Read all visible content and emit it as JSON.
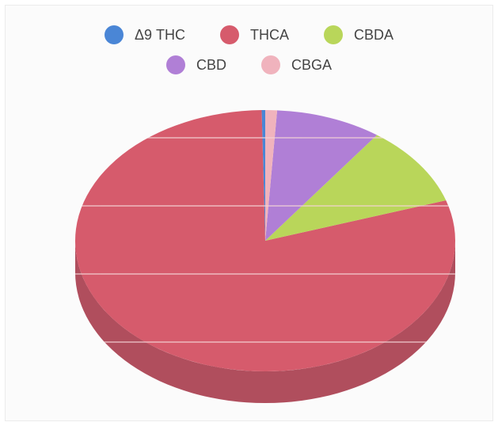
{
  "chart_data": {
    "type": "pie",
    "style": "3d",
    "categories": [
      "Δ9 THC",
      "THCA",
      "CBDA",
      "CBD",
      "CBGA"
    ],
    "values": [
      0.3,
      79.7,
      10.0,
      9.0,
      1.0
    ],
    "colors": [
      "#4a86d6",
      "#d65b6c",
      "#b9d65a",
      "#b07fd6",
      "#f0b3bd"
    ],
    "side_color": "#b04e5d",
    "legend_position": "top",
    "title": "",
    "grid": true
  }
}
